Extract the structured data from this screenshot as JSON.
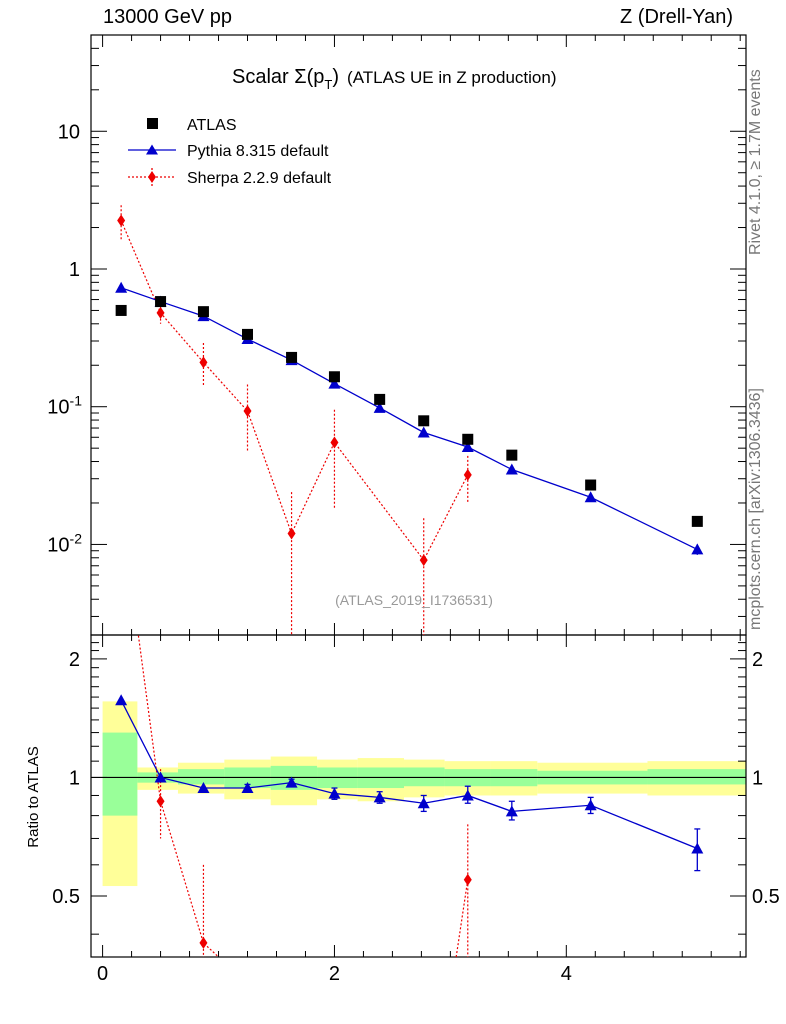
{
  "header": {
    "left": "13000 GeV pp",
    "right": "Z (Drell-Yan)"
  },
  "side_labels": {
    "rivet": "Rivet 4.1.0, ≥ 1.7M events",
    "mcplots": "mcplots.cern.ch [arXiv:1306.3436]"
  },
  "chart_data": {
    "type": "scatter",
    "title": "Scalar Σ(pT) (ATLAS UE in Z production)",
    "title_parts": {
      "prefix": "Scalar ",
      "sigma": "Σ",
      "paren_open": "(p",
      "sub": "T",
      "paren_close": ")",
      "suffix": "(ATLAS UE in Z production)"
    },
    "watermark": "(ATLAS_2019_I1736531)",
    "yscale": "log",
    "ylim": [
      0.0022,
      50
    ],
    "xlim": [
      -0.1,
      5.55
    ],
    "x_ticks": [
      "0",
      "2",
      "4"
    ],
    "y_ticks": [
      {
        "base": "10",
        "exp": "-2",
        "value": 0.01
      },
      {
        "base": "10",
        "exp": "-1",
        "value": 0.1
      },
      {
        "base": "1",
        "exp": "",
        "value": 1
      },
      {
        "base": "10",
        "exp": "",
        "value": 10
      }
    ],
    "legend": {
      "placement": "top-left",
      "entries": [
        "ATLAS",
        "Pythia 8.315 default",
        "Sherpa 2.2.9 default"
      ]
    },
    "bin_edges": [
      0.0,
      0.3,
      0.65,
      1.05,
      1.45,
      1.85,
      2.2,
      2.6,
      2.95,
      3.35,
      3.75,
      4.7,
      5.55
    ],
    "series": [
      {
        "name": "ATLAS",
        "color": "#000000",
        "marker": "square",
        "x": [
          0.16,
          0.5,
          0.87,
          1.25,
          1.63,
          2.0,
          2.39,
          2.77,
          3.15,
          3.53,
          4.21,
          5.13
        ],
        "y": [
          0.5,
          0.58,
          0.49,
          0.335,
          0.228,
          0.165,
          0.113,
          0.079,
          0.058,
          0.0445,
          0.027,
          0.0147
        ]
      },
      {
        "name": "Pythia 8.315 default",
        "color": "#0000cc",
        "marker": "triangle",
        "x": [
          0.16,
          0.5,
          0.87,
          1.25,
          1.63,
          2.0,
          2.39,
          2.77,
          3.15,
          3.53,
          4.21,
          5.13
        ],
        "y": [
          0.73,
          0.58,
          0.455,
          0.31,
          0.218,
          0.147,
          0.098,
          0.065,
          0.051,
          0.035,
          0.022,
          0.0092
        ],
        "yerr": [
          0.005,
          0.004,
          0.003,
          0.002,
          0.002,
          0.002,
          0.002,
          0.0015,
          0.001,
          0.0012,
          0.0012,
          0.0008
        ]
      },
      {
        "name": "Sherpa 2.2.9 default",
        "color": "#ee0000",
        "marker": "diamond",
        "x": [
          0.16,
          0.5,
          0.87,
          1.25,
          1.63,
          2.0,
          2.77,
          3.15
        ],
        "y": [
          2.25,
          0.48,
          0.21,
          0.093,
          0.012,
          0.055,
          0.0077,
          0.032
        ],
        "ylo": [
          1.6,
          0.4,
          0.14,
          0.048,
          0.0022,
          0.018,
          0.0022,
          0.02
        ],
        "yhi": [
          2.9,
          0.57,
          0.29,
          0.145,
          0.024,
          0.095,
          0.0155,
          0.044
        ]
      }
    ],
    "ratio": {
      "ylabel": "Ratio to ATLAS",
      "ylim": [
        0.35,
        2.3
      ],
      "y_ticks": [
        "0.5",
        "1",
        "2"
      ],
      "y_tick_values": [
        0.5,
        1,
        2
      ],
      "band_inner": [
        [
          0.8,
          1.3
        ],
        [
          0.97,
          1.03
        ],
        [
          0.96,
          1.05
        ],
        [
          0.94,
          1.06
        ],
        [
          0.93,
          1.07
        ],
        [
          0.94,
          1.06
        ],
        [
          0.94,
          1.06
        ],
        [
          0.95,
          1.06
        ],
        [
          0.95,
          1.05
        ],
        [
          0.95,
          1.05
        ],
        [
          0.96,
          1.04
        ],
        [
          0.96,
          1.05
        ]
      ],
      "band_outer": [
        [
          0.53,
          1.56
        ],
        [
          0.93,
          1.06
        ],
        [
          0.91,
          1.09
        ],
        [
          0.88,
          1.11
        ],
        [
          0.85,
          1.13
        ],
        [
          0.88,
          1.11
        ],
        [
          0.87,
          1.12
        ],
        [
          0.89,
          1.11
        ],
        [
          0.9,
          1.1
        ],
        [
          0.9,
          1.1
        ],
        [
          0.91,
          1.09
        ],
        [
          0.9,
          1.1
        ]
      ],
      "pythia": {
        "x": [
          0.16,
          0.5,
          0.87,
          1.25,
          1.63,
          2.0,
          2.39,
          2.77,
          3.15,
          3.53,
          4.21,
          5.13
        ],
        "y": [
          1.57,
          1.0,
          0.94,
          0.94,
          0.97,
          0.91,
          0.89,
          0.86,
          0.9,
          0.82,
          0.85,
          0.66
        ],
        "ylo": [
          1.57,
          1.0,
          0.94,
          0.92,
          0.95,
          0.88,
          0.86,
          0.82,
          0.86,
          0.78,
          0.81,
          0.58
        ],
        "yhi": [
          1.57,
          1.0,
          0.94,
          0.96,
          0.99,
          0.94,
          0.92,
          0.9,
          0.95,
          0.87,
          0.89,
          0.74
        ]
      },
      "sherpa": {
        "x": [
          0.5,
          0.87,
          3.15
        ],
        "y": [
          0.87,
          0.38,
          0.55
        ],
        "ylo": [
          0.7,
          0.25,
          0.35
        ],
        "yhi": [
          1.05,
          0.6,
          0.76
        ],
        "line_start": [
          0.3,
          2.4
        ],
        "line_x": [
          0.5,
          0.87
        ],
        "line_exit": [
          1.0,
          0.35
        ],
        "line_enter": [
          3.05,
          0.35
        ],
        "tail_x": [
          3.15,
          3.25
        ],
        "tail_y": [
          0.55,
          0.84
        ]
      }
    }
  }
}
